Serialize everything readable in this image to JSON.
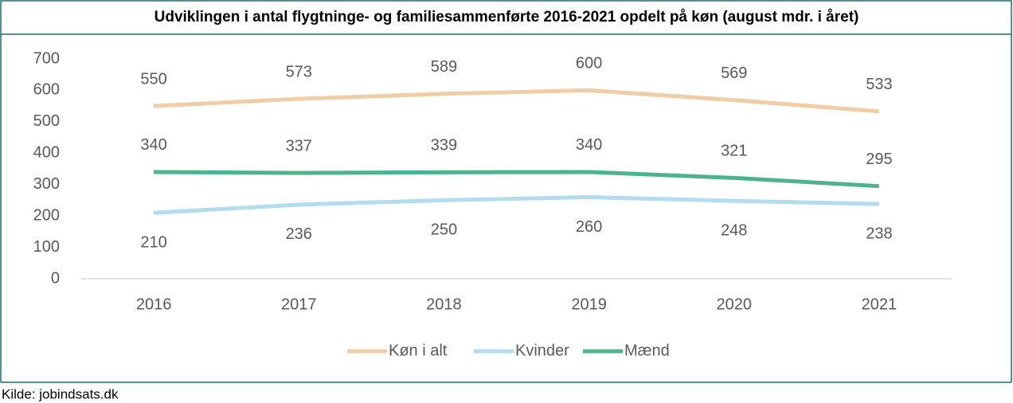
{
  "chart_data": {
    "type": "line",
    "title": "Udviklingen i antal flygtninge- og familiesammenførte 2016-2021 opdelt på køn (august mdr. i året)",
    "categories": [
      "2016",
      "2017",
      "2018",
      "2019",
      "2020",
      "2021"
    ],
    "series": [
      {
        "name": "Køn i alt",
        "color": "#f0cda7",
        "label_position": "above",
        "values": [
          550,
          573,
          589,
          600,
          569,
          533
        ]
      },
      {
        "name": "Kvinder",
        "color": "#b4dcf0",
        "label_position": "below",
        "values": [
          210,
          236,
          250,
          260,
          248,
          238
        ]
      },
      {
        "name": "Mænd",
        "color": "#4cb38a",
        "label_position": "above",
        "values": [
          340,
          337,
          339,
          340,
          321,
          295
        ]
      }
    ],
    "ylim": [
      0,
      700
    ],
    "yticks": [
      0,
      100,
      200,
      300,
      400,
      500,
      600,
      700
    ],
    "grid": false,
    "legend": "bottom",
    "source": "Kilde: jobindsats.dk"
  }
}
